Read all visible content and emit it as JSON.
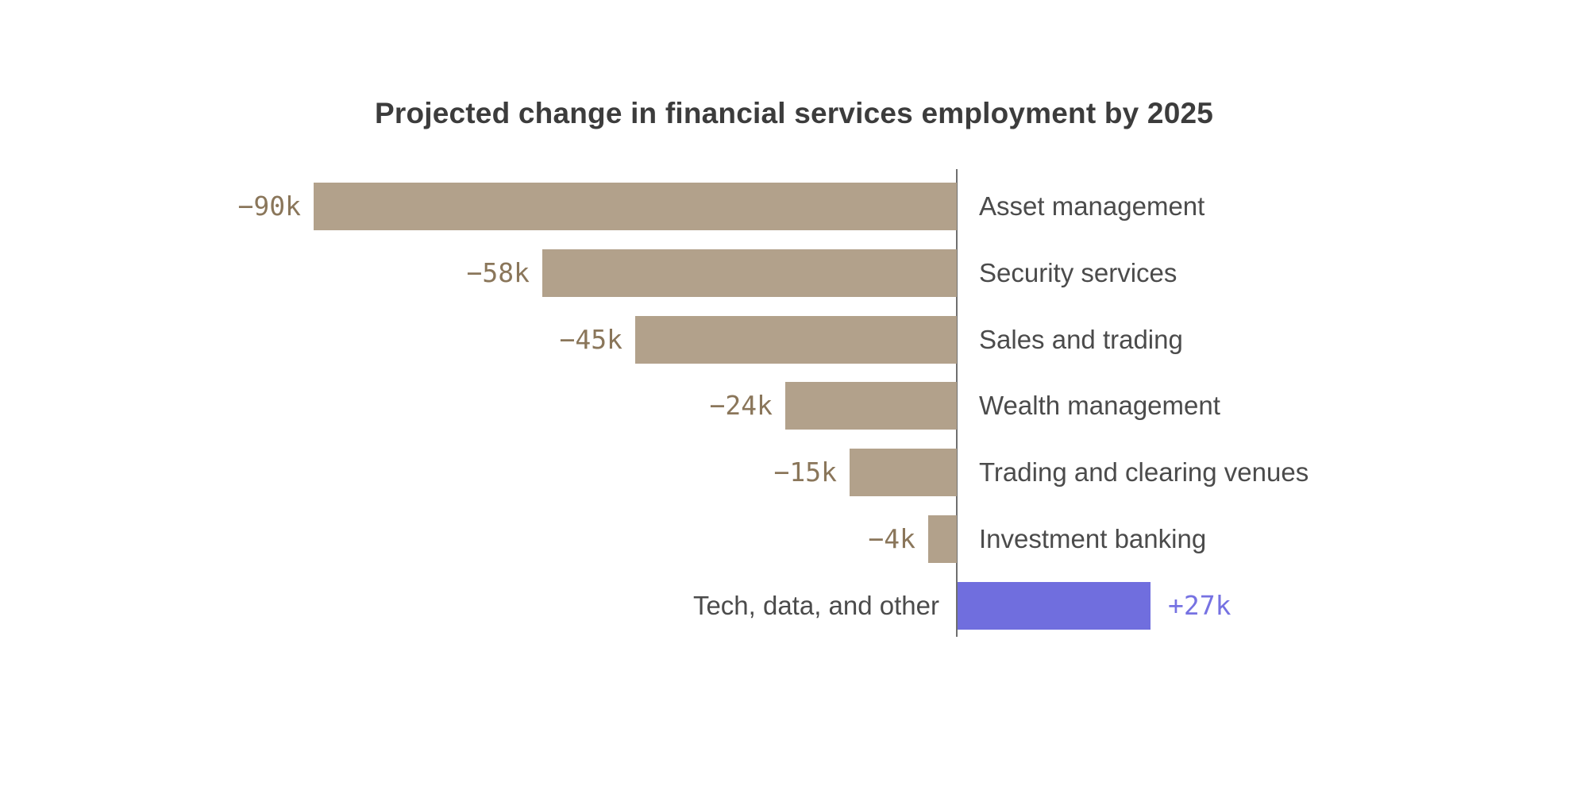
{
  "chart_data": {
    "type": "bar",
    "orientation": "horizontal",
    "title": "Projected change in financial services employment by 2025",
    "unit": "thousands of jobs",
    "categories": [
      "Asset management",
      "Security services",
      "Sales and trading",
      "Wealth management",
      "Trading and clearing venues",
      "Investment banking",
      "Tech, data, and other"
    ],
    "values": [
      -90,
      -58,
      -45,
      -24,
      -15,
      -4,
      27
    ],
    "value_labels": [
      "−90k",
      "−58k",
      "−45k",
      "−24k",
      "−15k",
      "−4k",
      "+27k"
    ],
    "xlim": [
      -90,
      27
    ],
    "grid": false,
    "legend": "none",
    "colors": {
      "negative_bar": "#b2a18b",
      "negative_label": "#8a765a",
      "positive_bar": "#706ede",
      "positive_label": "#7672e2",
      "axis_line": "#6f6f6f",
      "title_text": "#3c3c3c",
      "category_text": "#4b4b4b"
    }
  }
}
